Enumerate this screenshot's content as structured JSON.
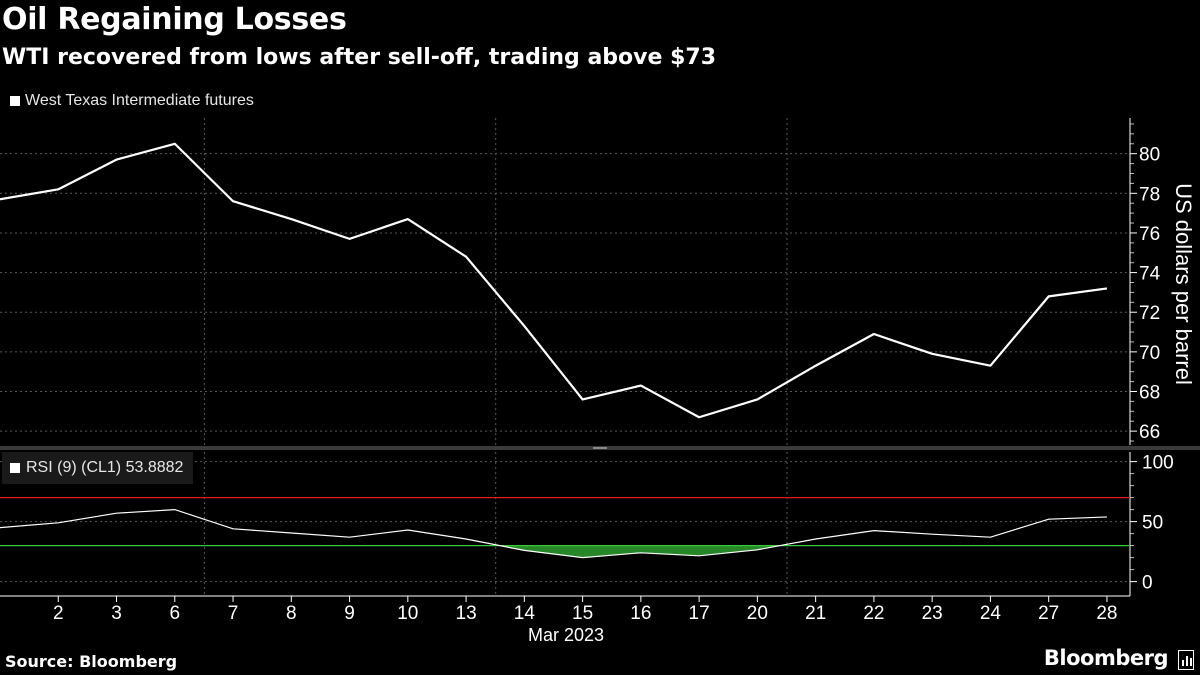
{
  "header": {
    "title": "Oil Regaining Losses",
    "subtitle": "WTI recovered from lows after sell-off, trading above $73"
  },
  "legend": {
    "main_label": "West Texas Intermediate futures",
    "rsi_label": "RSI (9) (CL1) 53.8882"
  },
  "footer": {
    "source": "Source: Bloomberg",
    "brand": "Bloomberg"
  },
  "chart_data": [
    {
      "type": "line",
      "title": "Oil Regaining Losses",
      "subtitle": "WTI recovered from lows after sell-off, trading above $73",
      "series_name": "West Texas Intermediate futures",
      "ylabel": "US dollars per barrel",
      "xlabel": "Mar 2023",
      "ylim": [
        65.3,
        81.8
      ],
      "yticks": [
        66,
        68,
        70,
        72,
        74,
        76,
        78,
        80
      ],
      "grid": true,
      "color": "#ffffff",
      "categories": [
        "",
        "2",
        "3",
        "6",
        "7",
        "8",
        "9",
        "10",
        "13",
        "14",
        "15",
        "16",
        "17",
        "20",
        "21",
        "22",
        "23",
        "24",
        "27",
        "28"
      ],
      "values": [
        77.7,
        78.2,
        79.7,
        80.5,
        77.6,
        76.7,
        75.7,
        76.7,
        74.8,
        71.3,
        67.6,
        68.3,
        66.7,
        67.6,
        69.3,
        70.9,
        69.9,
        69.3,
        72.8,
        73.2
      ]
    },
    {
      "type": "line",
      "series_name": "RSI (9) (CL1)",
      "last_value": 53.8882,
      "ylim": [
        -12,
        108
      ],
      "yticks": [
        0,
        50,
        100
      ],
      "overbought": 70,
      "oversold": 30,
      "overbought_color": "#d71e1e",
      "oversold_color": "#37c837",
      "fill_color": "#2e9e2e",
      "color": "#ffffff",
      "categories": [
        "",
        "2",
        "3",
        "6",
        "7",
        "8",
        "9",
        "10",
        "13",
        "14",
        "15",
        "16",
        "17",
        "20",
        "21",
        "22",
        "23",
        "24",
        "27",
        "28"
      ],
      "xlabel": "Mar 2023",
      "values": [
        45.0,
        49.0,
        57.0,
        60.0,
        44.0,
        40.5,
        37.0,
        43.0,
        35.5,
        26.0,
        20.0,
        24.0,
        21.5,
        26.5,
        35.5,
        42.5,
        39.5,
        37.0,
        52.0,
        53.9
      ]
    }
  ]
}
